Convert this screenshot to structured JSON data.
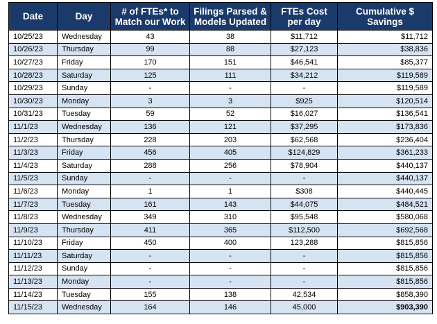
{
  "headers": {
    "date": "Date",
    "day": "Day",
    "ftes_line1": "# of FTEs* to",
    "ftes_line2": "Match our Work",
    "filings_line1": "Filings Parsed &",
    "filings_line2": "Models Updated",
    "cost_line1": "FTEs Cost",
    "cost_line2": "per day",
    "cum_line1": "Cumulative $",
    "cum_line2": "Savings"
  },
  "rows": [
    {
      "date": "10/25/23",
      "day": "Wednesday",
      "ftes": "43",
      "filings": "38",
      "cost": "$11,712",
      "cumulative": "$11,712"
    },
    {
      "date": "10/26/23",
      "day": "Thursday",
      "ftes": "99",
      "filings": "88",
      "cost": "$27,123",
      "cumulative": "$38,836"
    },
    {
      "date": "10/27/23",
      "day": "Friday",
      "ftes": "170",
      "filings": "151",
      "cost": "$46,541",
      "cumulative": "$85,377"
    },
    {
      "date": "10/28/23",
      "day": "Saturday",
      "ftes": "125",
      "filings": "111",
      "cost": "$34,212",
      "cumulative": "$119,589"
    },
    {
      "date": "10/29/23",
      "day": "Sunday",
      "ftes": "-",
      "filings": "-",
      "cost": "-",
      "cumulative": "$119,589"
    },
    {
      "date": "10/30/23",
      "day": "Monday",
      "ftes": "3",
      "filings": "3",
      "cost": "$925",
      "cumulative": "$120,514"
    },
    {
      "date": "10/31/23",
      "day": "Tuesday",
      "ftes": "59",
      "filings": "52",
      "cost": "$16,027",
      "cumulative": "$136,541"
    },
    {
      "date": "11/1/23",
      "day": "Wednesday",
      "ftes": "136",
      "filings": "121",
      "cost": "$37,295",
      "cumulative": "$173,836"
    },
    {
      "date": "11/2/23",
      "day": "Thursday",
      "ftes": "228",
      "filings": "203",
      "cost": "$62,568",
      "cumulative": "$236,404"
    },
    {
      "date": "11/3/23",
      "day": "Friday",
      "ftes": "456",
      "filings": "405",
      "cost": "$124,829",
      "cumulative": "$361,233"
    },
    {
      "date": "11/4/23",
      "day": "Saturday",
      "ftes": "288",
      "filings": "256",
      "cost": "$78,904",
      "cumulative": "$440,137"
    },
    {
      "date": "11/5/23",
      "day": "Sunday",
      "ftes": "-",
      "filings": "-",
      "cost": "-",
      "cumulative": "$440,137"
    },
    {
      "date": "11/6/23",
      "day": "Monday",
      "ftes": "1",
      "filings": "1",
      "cost": "$308",
      "cumulative": "$440,445"
    },
    {
      "date": "11/7/23",
      "day": "Tuesday",
      "ftes": "161",
      "filings": "143",
      "cost": "$44,075",
      "cumulative": "$484,521"
    },
    {
      "date": "11/8/23",
      "day": "Wednesday",
      "ftes": "349",
      "filings": "310",
      "cost": "$95,548",
      "cumulative": "$580,068"
    },
    {
      "date": "11/9/23",
      "day": "Thursday",
      "ftes": "411",
      "filings": "365",
      "cost": "$112,500",
      "cumulative": "$692,568"
    },
    {
      "date": "11/10/23",
      "day": "Friday",
      "ftes": "450",
      "filings": "400",
      "cost": "123,288",
      "cumulative": "$815,856"
    },
    {
      "date": "11/11/23",
      "day": "Saturday",
      "ftes": "-",
      "filings": "-",
      "cost": "-",
      "cumulative": "$815,856"
    },
    {
      "date": "11/12/23",
      "day": "Sunday",
      "ftes": "-",
      "filings": "-",
      "cost": "-",
      "cumulative": "$815,856"
    },
    {
      "date": "11/13/23",
      "day": "Monday",
      "ftes": "-",
      "filings": "-",
      "cost": "-",
      "cumulative": "$815,856"
    },
    {
      "date": "11/14/23",
      "day": "Tuesday",
      "ftes": "155",
      "filings": "138",
      "cost": "42,534",
      "cumulative": "$858,390"
    },
    {
      "date": "11/15/23",
      "day": "Wednesday",
      "ftes": "164",
      "filings": "146",
      "cost": "45,000",
      "cumulative": "$903,390",
      "cumulative_bold": true
    }
  ],
  "colors": {
    "header_bg": "#1a3a6b",
    "header_text": "#ffffff",
    "row_alt": "#d6e3f2",
    "row_norm": "#ffffff",
    "border": "#000000"
  }
}
